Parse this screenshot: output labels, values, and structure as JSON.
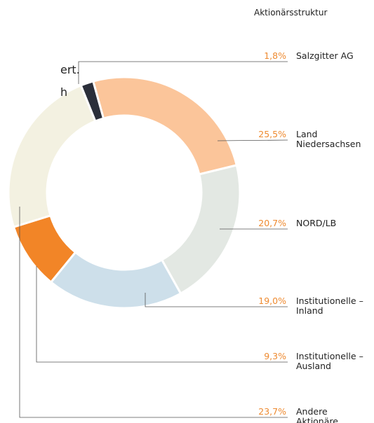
{
  "chart_data": {
    "type": "donut",
    "title": "Aktionärsstruktur",
    "fragments": [
      "ert.",
      "h"
    ],
    "categories": [
      "Salzgitter AG",
      "Land\nNiedersachsen",
      "NORD/LB",
      "Institutionelle –\nInland",
      "Institutionelle –\nAusland",
      "Andere\nAktionäre"
    ],
    "values": [
      1.8,
      25.5,
      20.7,
      19.0,
      9.3,
      23.7
    ],
    "value_labels": [
      "1,8%",
      "25,5%",
      "20,7%",
      "19,0%",
      "9,3%",
      "23,7%"
    ],
    "colors": [
      "#2b2f3a",
      "#fbc59a",
      "#e3e8e3",
      "#cddfea",
      "#f28527",
      "#f3f1e1"
    ]
  }
}
